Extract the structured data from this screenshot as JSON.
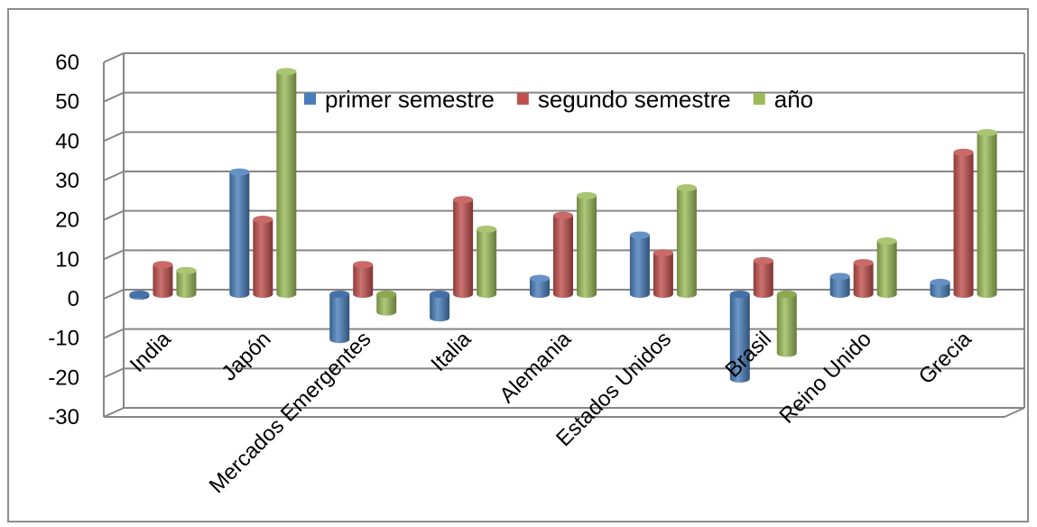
{
  "chart_data": {
    "type": "bar",
    "categories": [
      "India",
      "Japón",
      "Mercados Emergentes",
      "Italia",
      "Alemania",
      "Estados Unidos",
      "Brasil",
      "Reino Unido",
      "Grecia"
    ],
    "series": [
      {
        "name": "primer semestre",
        "color": "#4a7ebb",
        "values": [
          -0.5,
          31,
          -11.5,
          -6,
          4,
          15,
          -21.5,
          4.5,
          3
        ]
      },
      {
        "name": "segundo semestre",
        "color": "#c0504d",
        "values": [
          7.5,
          19,
          7.5,
          24,
          20,
          10.5,
          8.5,
          8,
          36
        ]
      },
      {
        "name": "año",
        "color": "#9bbb59",
        "values": [
          6,
          56.5,
          -4.5,
          16.5,
          25,
          27,
          -15,
          13.5,
          41
        ]
      }
    ],
    "y_ticks": [
      "60",
      "50",
      "40",
      "30",
      "20",
      "10",
      "0",
      "-10",
      "-20",
      "-30"
    ],
    "ylim": [
      -30,
      60
    ],
    "grid": true,
    "legend_position": "top-center",
    "title": "",
    "xlabel": "",
    "ylabel": ""
  }
}
